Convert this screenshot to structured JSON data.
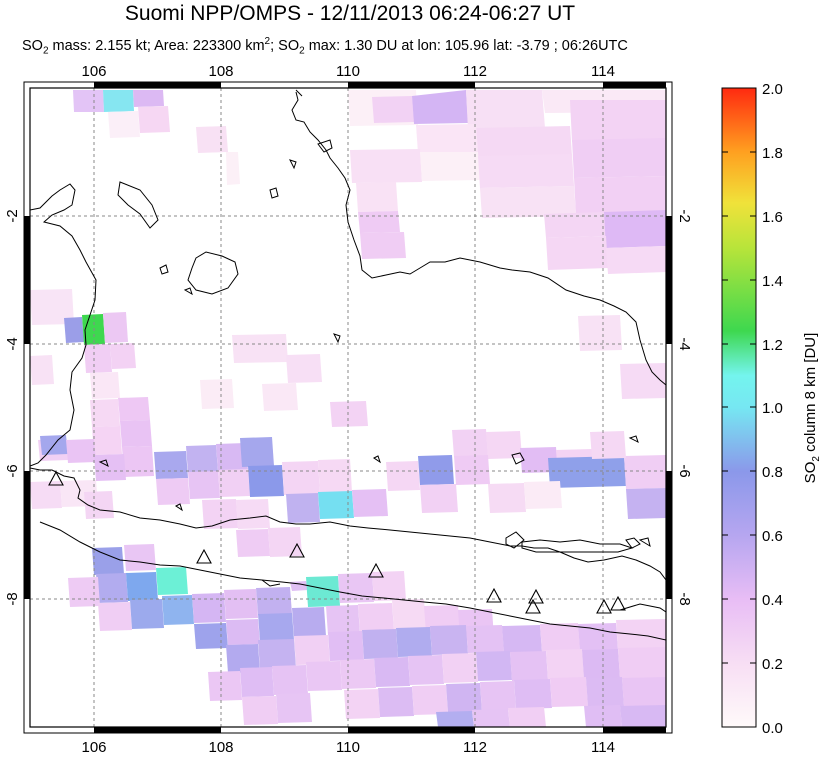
{
  "title": "Suomi NPP/OMPS - 12/11/2013 06:24-06:27 UT",
  "subtitle": {
    "part1": "SO",
    "sub1": "2",
    "part2": " mass: 2.155 kt; Area: 223300 km",
    "sup": "2",
    "part3": "; SO",
    "sub2": "2",
    "part4": " max: 1.30 DU at lon: 105.96 lat: -3.79 ; 06:26UTC"
  },
  "map": {
    "lon_range": [
      105,
      115
    ],
    "lat_range": [
      -10,
      0
    ],
    "lon_ticks": [
      "106",
      "108",
      "110",
      "112",
      "114"
    ],
    "lat_ticks": [
      "-2",
      "-4",
      "-6",
      "-8"
    ],
    "colors": {
      "frame": "#000000",
      "grid": "#888888",
      "coast": "#000000"
    }
  },
  "colorbar": {
    "label_pre": "SO",
    "label_sub": "2",
    "label_post": " column 8 km [DU]",
    "ticks": [
      "2.0",
      "1.8",
      "1.6",
      "1.4",
      "1.2",
      "1.0",
      "0.8",
      "0.6",
      "0.4",
      "0.2",
      "0.0"
    ],
    "range": [
      0,
      2.0
    ],
    "stops": [
      "#fffafa",
      "#f5d9f2",
      "#e5b8f5",
      "#b8a5f0",
      "#8c94ea",
      "#74e0ee",
      "#74f7f4",
      "#3ed84f",
      "#c8e63a",
      "#f0e23a",
      "#ffa020",
      "#ff2a10"
    ]
  },
  "volcano_icon": "triangle-icon"
}
